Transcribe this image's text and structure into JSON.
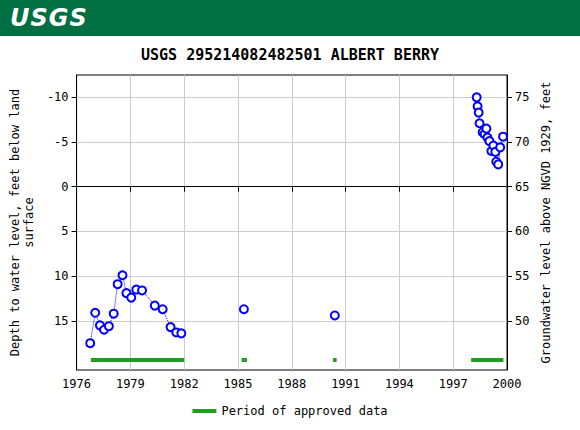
{
  "header": {
    "text": "USGS"
  },
  "chart_data": {
    "type": "line",
    "title": "USGS 295214082482501 ALBERT BERRY",
    "y_label": "Depth to water level, feet below land\nsurface",
    "y2_label": "Groundwater level above NGVD 1929, feet",
    "x": [
      1976.76,
      1977.04,
      1977.3,
      1977.53,
      1977.8,
      1978.07,
      1978.29,
      1978.56,
      1978.78,
      1979.05,
      1979.33,
      1979.65,
      1980.36,
      1980.8,
      1981.24,
      1981.56,
      1981.84,
      1983.5,
      1985.33,
      1988.0,
      1990.4,
      1994.0,
      1998.31,
      1998.36,
      1998.42,
      1998.47,
      1998.64,
      1998.75,
      1998.85,
      1998.91,
      1999.02,
      1999.13,
      1999.24,
      1999.35,
      1999.4,
      1999.51,
      1999.62,
      1999.78
    ],
    "series": [
      {
        "color": "#0000ff",
        "marker": "circle",
        "line_style": "dotted",
        "values": [
          17.5,
          14.1,
          15.5,
          16.0,
          15.6,
          14.2,
          10.9,
          9.9,
          11.9,
          12.4,
          11.5,
          11.6,
          13.3,
          13.7,
          15.7,
          16.3,
          16.4,
          null,
          13.7,
          null,
          14.4,
          null,
          -10.0,
          -9.0,
          -8.3,
          -7.1,
          -6.1,
          -5.9,
          -6.5,
          -5.5,
          -5.1,
          -4.0,
          -4.6,
          -3.9,
          -2.8,
          -2.5,
          -4.4,
          -5.6
        ]
      }
    ],
    "approved_periods": {
      "name": "Period of approved data",
      "color": "#1f9e1f",
      "ranges": [
        [
          1976.8,
          1982.0
        ],
        [
          1985.2,
          1985.5
        ],
        [
          1990.3,
          1990.5
        ],
        [
          1998.0,
          1999.8
        ]
      ]
    },
    "xlim": [
      1976,
      2000
    ],
    "xticks": [
      1976,
      1979,
      1982,
      1985,
      1988,
      1991,
      1994,
      1997,
      2000
    ],
    "ylim": [
      20.5,
      -12.5
    ],
    "yticks": [
      -10,
      -5,
      0,
      5,
      10,
      15
    ],
    "y2lim": [
      44.5,
      77.5
    ],
    "y2ticks": [
      50,
      55,
      60,
      65,
      70,
      75
    ],
    "grid": true,
    "legend": "bottom"
  }
}
